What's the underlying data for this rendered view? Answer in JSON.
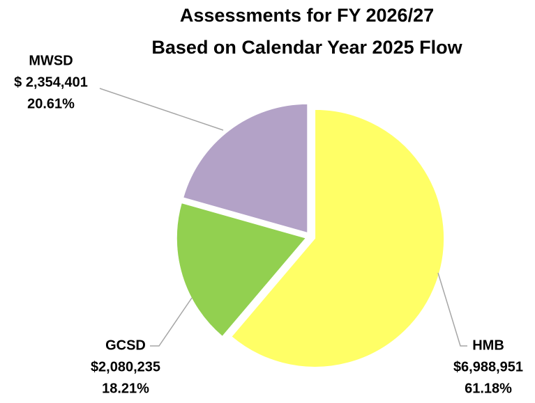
{
  "chart_data": {
    "type": "pie",
    "title": [
      "Assessments for FY 2026/27",
      "Based on Calendar Year 2025 Flow"
    ],
    "categories": [
      "HMB",
      "GCSD",
      "MWSD"
    ],
    "values": [
      61.18,
      18.21,
      20.61
    ],
    "value_labels": [
      "61.18%",
      "18.21%",
      "20.61%"
    ],
    "amount_labels": [
      "$6,988,951",
      "$2,080,235",
      "$ 2,354,401"
    ],
    "colors": [
      "#ffff66",
      "#92d050",
      "#b3a2c7"
    ]
  }
}
